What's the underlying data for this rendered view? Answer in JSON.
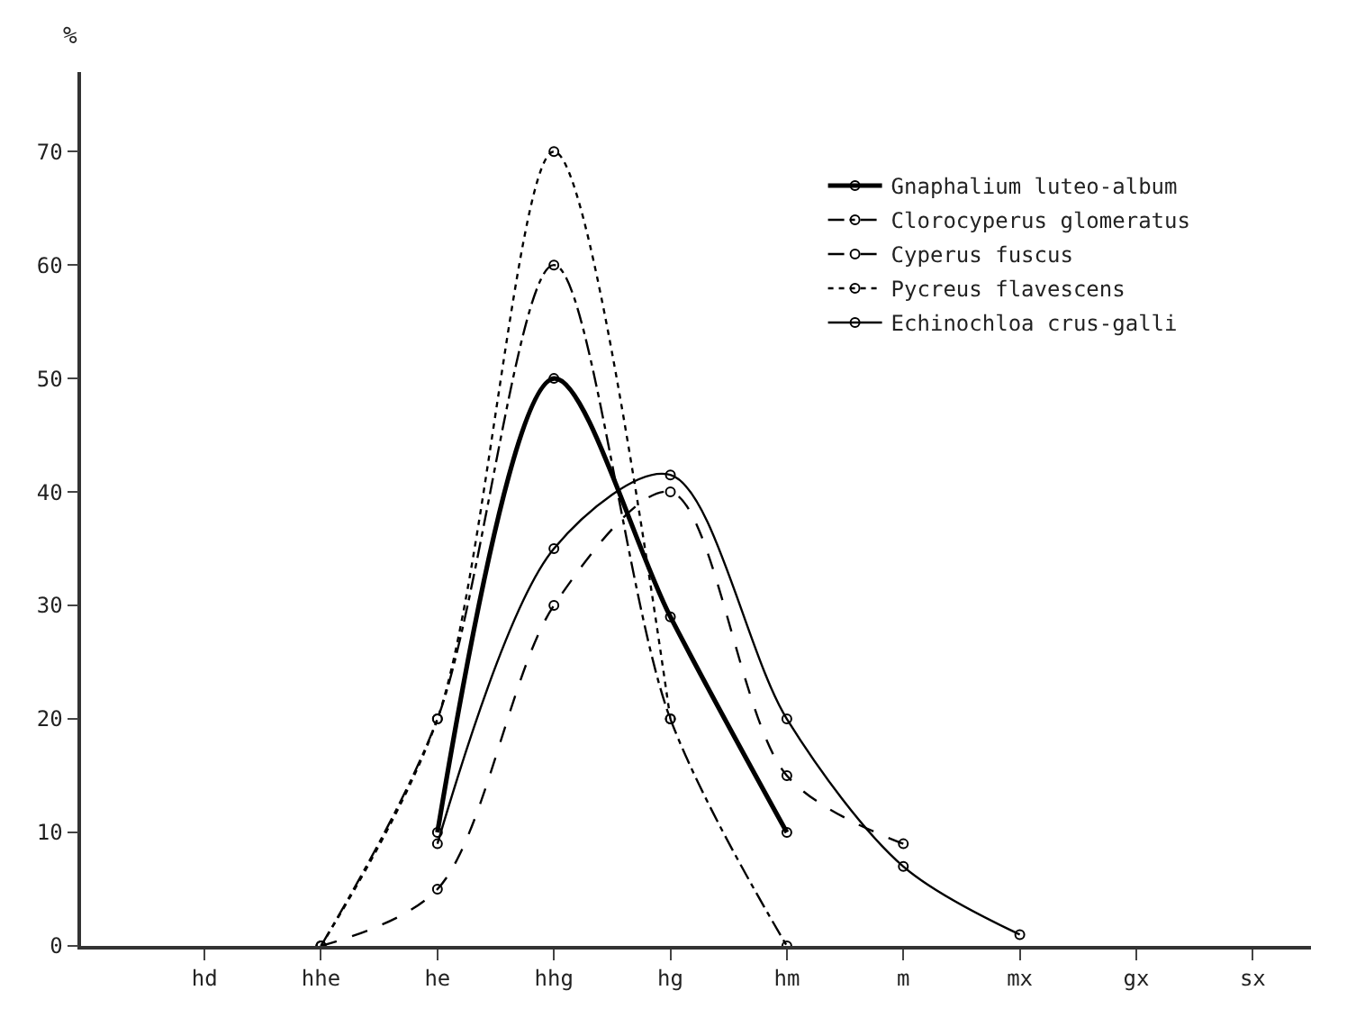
{
  "chart_data": {
    "type": "line",
    "ylabel": "%",
    "ylim": [
      0,
      77
    ],
    "categories": [
      "hd",
      "hhe",
      "he",
      "hhg",
      "hg",
      "hm",
      "m",
      "mx",
      "gx",
      "sx"
    ],
    "yticks": [
      0,
      10,
      20,
      30,
      40,
      50,
      60,
      70
    ],
    "legend": "top right",
    "marker": "circle",
    "series": [
      {
        "name": "Gnaphalium luteo-album",
        "color": "#000000",
        "line_style": "solid",
        "values": [
          null,
          null,
          10,
          50,
          29,
          10,
          null,
          null,
          null,
          null
        ]
      },
      {
        "name": "Clorocyperus glomeratus",
        "color": "#000000",
        "line_style": "dashdot",
        "values": [
          null,
          0,
          20,
          60,
          20,
          0,
          null,
          null,
          null,
          null
        ]
      },
      {
        "name": "Cyperus fuscus",
        "color": "#000000",
        "line_style": "dashed",
        "values": [
          null,
          0,
          5,
          30,
          40,
          15,
          9,
          null,
          null,
          null
        ]
      },
      {
        "name": "Pycreus flavescens",
        "color": "#000000",
        "line_style": "dotted",
        "values": [
          null,
          0,
          20,
          70,
          20,
          null,
          null,
          null,
          null,
          null
        ]
      },
      {
        "name": "Echinochloa crus-galli",
        "color": "#000000",
        "line_style": "solid",
        "values": [
          null,
          null,
          9,
          35,
          41.5,
          20,
          7,
          1,
          null,
          null
        ]
      }
    ]
  }
}
